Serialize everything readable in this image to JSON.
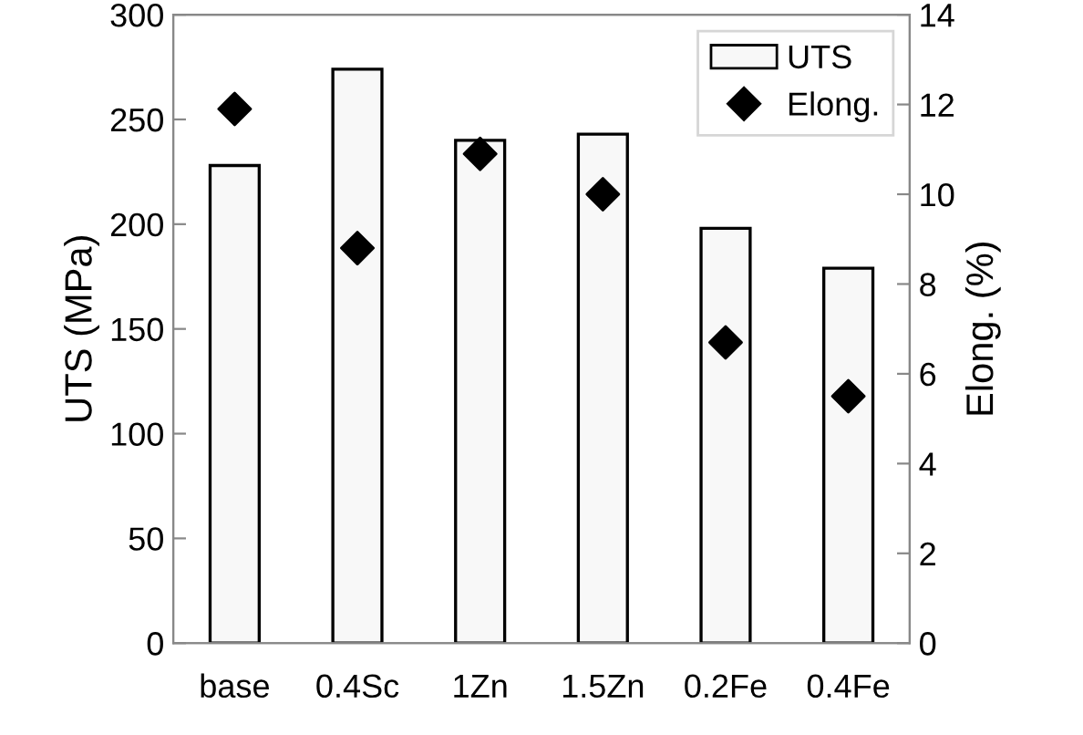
{
  "chart_data": {
    "type": "bar",
    "categories": [
      "base",
      "0.4Sc",
      "1Zn",
      "1.5Zn",
      "0.2Fe",
      "0.4Fe"
    ],
    "series": [
      {
        "name": "UTS",
        "color": "#f8f8f8",
        "values": [
          228,
          274,
          240,
          243,
          198,
          179
        ]
      },
      {
        "name": "Elong.",
        "type": "scatter",
        "axis": "y2",
        "color": "#000000",
        "values": [
          11.9,
          8.8,
          10.9,
          10.0,
          6.7,
          5.5
        ]
      }
    ],
    "ylabel": "UTS (MPa)",
    "y2label": "Elong. (%)",
    "ylim": [
      0,
      300
    ],
    "yticks": [
      0,
      50,
      100,
      150,
      200,
      250,
      300
    ],
    "y2lim": [
      0,
      14
    ],
    "y2ticks": [
      0,
      2,
      4,
      6,
      8,
      10,
      12,
      14
    ],
    "marker": "diamond",
    "legend": "top right",
    "grid": false
  }
}
